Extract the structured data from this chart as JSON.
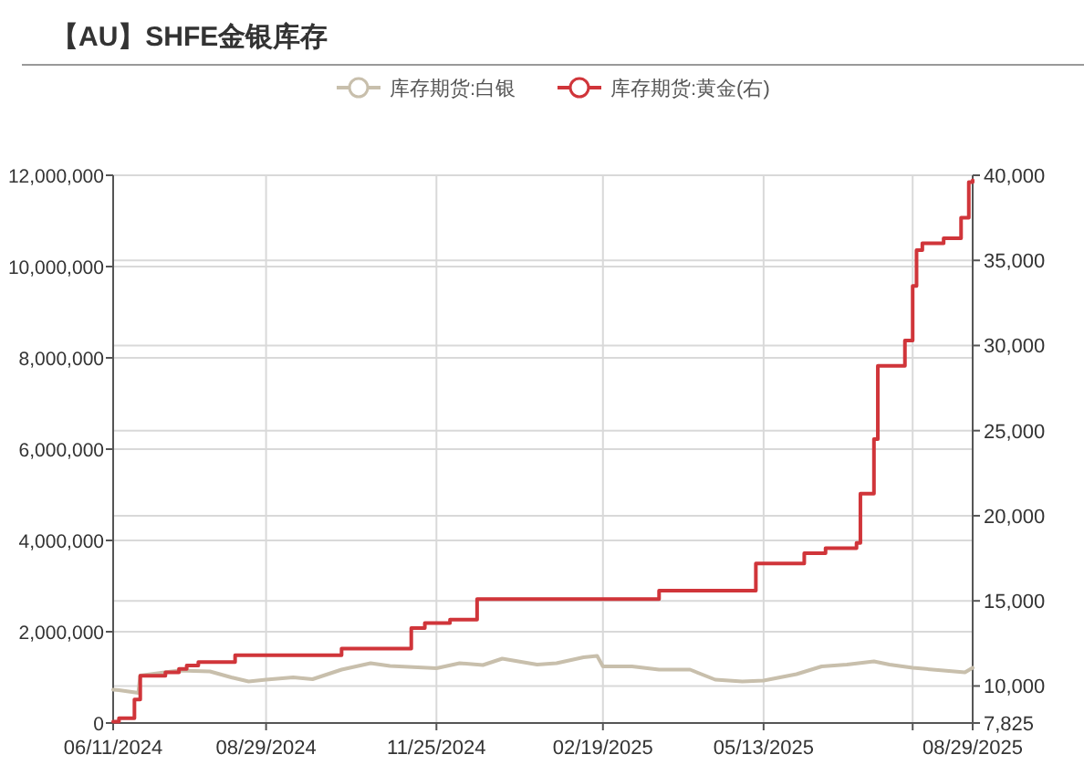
{
  "chart_data": {
    "type": "line",
    "title": "【AU】SHFE金银库存",
    "legend": "top",
    "grid": true,
    "line_style": "solid",
    "xlim": [
      "2024-06-11",
      "2025-08-29"
    ],
    "xticks": [
      {
        "value": "2024-06-11",
        "label": "06/11/2024"
      },
      {
        "value": "2024-08-29",
        "label": "08/29/2024"
      },
      {
        "value": "2024-11-25",
        "label": "11/25/2024"
      },
      {
        "value": "2025-02-19",
        "label": "02/19/2025"
      },
      {
        "value": "2025-05-13",
        "label": "05/13/2025"
      },
      {
        "value": "2025-07-29",
        "label": null
      },
      {
        "value": "2025-08-29",
        "label": "08/29/2025"
      }
    ],
    "ylim": [
      0,
      12000000
    ],
    "yticks": [
      0,
      {
        "value": 2000000,
        "label": "2,000,000"
      },
      {
        "value": 4000000,
        "label": "4,000,000"
      },
      {
        "value": 6000000,
        "label": "6,000,000"
      },
      {
        "value": 8000000,
        "label": "8,000,000"
      },
      {
        "value": 10000000,
        "label": "10,000,000"
      },
      {
        "value": 12000000,
        "label": "12,000,000"
      }
    ],
    "y2lim": [
      7825,
      40000
    ],
    "y2ticks": [
      {
        "value": 7825,
        "label": "7,825"
      },
      {
        "value": 10000,
        "label": "10,000"
      },
      {
        "value": 15000,
        "label": "15,000"
      },
      {
        "value": 20000,
        "label": "20,000"
      },
      {
        "value": 25000,
        "label": "25,000"
      },
      {
        "value": 30000,
        "label": "30,000"
      },
      {
        "value": 35000,
        "label": "35,000"
      },
      {
        "value": 40000,
        "label": "40,000"
      }
    ],
    "series": [
      {
        "name": "库存期货:白银",
        "color": "#c8bfac",
        "x": [
          "2024-06-11",
          "2024-06-14",
          "2024-06-24",
          "2024-06-25",
          "2024-07-15",
          "2024-07-31",
          "2024-08-11",
          "2024-08-20",
          "2024-08-29",
          "2024-09-12",
          "2024-09-22",
          "2024-10-07",
          "2024-10-22",
          "2024-11-01",
          "2024-11-25",
          "2024-12-07",
          "2024-12-19",
          "2024-12-29",
          "2025-01-16",
          "2025-01-26",
          "2025-02-09",
          "2025-02-16",
          "2025-02-19",
          "2025-03-06",
          "2025-03-20",
          "2025-04-05",
          "2025-04-18",
          "2025-05-02",
          "2025-05-13",
          "2025-05-30",
          "2025-06-12",
          "2025-06-25",
          "2025-07-09",
          "2025-07-17",
          "2025-07-29",
          "2025-08-14",
          "2025-08-25",
          "2025-08-29"
        ],
        "values": [
          730000,
          720000,
          660000,
          1040000,
          1150000,
          1130000,
          1000000,
          910000,
          950000,
          1000000,
          960000,
          1170000,
          1310000,
          1250000,
          1200000,
          1310000,
          1270000,
          1410000,
          1280000,
          1310000,
          1440000,
          1470000,
          1240000,
          1240000,
          1170000,
          1170000,
          950000,
          910000,
          930000,
          1070000,
          1240000,
          1280000,
          1350000,
          1280000,
          1210000,
          1150000,
          1110000,
          1210000
        ]
      },
      {
        "name": "库存期货:黄金(右)",
        "color": "#d0353a",
        "type": "step",
        "axis": "y2",
        "x": [
          "2024-06-11",
          "2024-06-14",
          "2024-06-22",
          "2024-06-25",
          "2024-07-08",
          "2024-07-15",
          "2024-07-19",
          "2024-07-25",
          "2024-08-13",
          "2024-08-29",
          "2024-10-07",
          "2024-11-12",
          "2024-11-19",
          "2024-11-25",
          "2024-12-02",
          "2024-12-16",
          "2025-02-19",
          "2025-03-20",
          "2025-05-09",
          "2025-05-13",
          "2025-06-03",
          "2025-06-14",
          "2025-06-30",
          "2025-07-02",
          "2025-07-09",
          "2025-07-11",
          "2025-07-25",
          "2025-07-29",
          "2025-07-31",
          "2025-08-03",
          "2025-08-14",
          "2025-08-23",
          "2025-08-27",
          "2025-08-29"
        ],
        "values": [
          7900,
          8100,
          9200,
          10600,
          10800,
          11000,
          11200,
          11400,
          11800,
          11800,
          12200,
          13400,
          13700,
          13700,
          13900,
          15100,
          15100,
          15600,
          17200,
          17200,
          17800,
          18100,
          18400,
          21300,
          24500,
          28800,
          30300,
          33500,
          35600,
          36000,
          36300,
          37500,
          39600,
          39700
        ]
      }
    ]
  }
}
